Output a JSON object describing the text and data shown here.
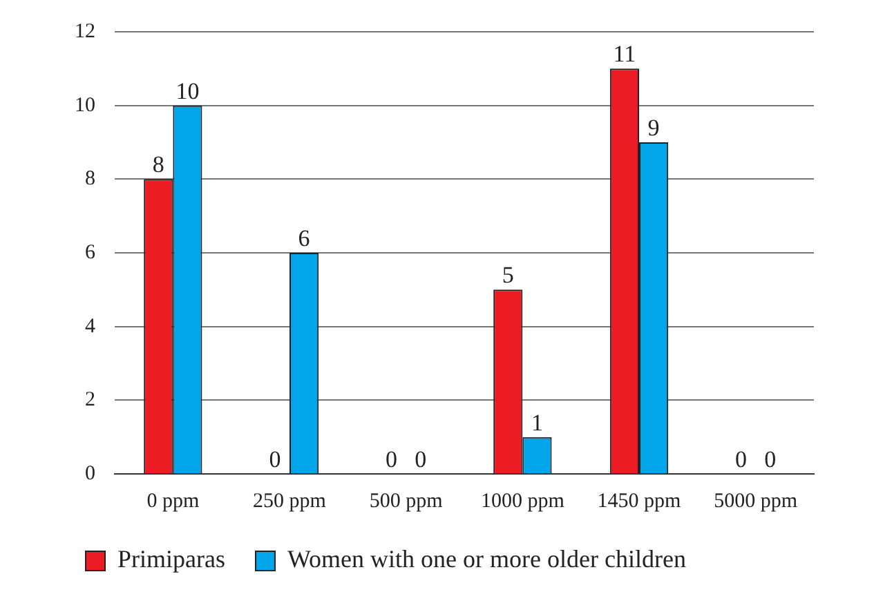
{
  "chart_data": {
    "type": "bar",
    "categories": [
      "0 ppm",
      "250 ppm",
      "500 ppm",
      "1000 ppm",
      "1450 ppm",
      "5000 ppm"
    ],
    "series": [
      {
        "name": "Primiparas",
        "color": "#ed1c24",
        "values": [
          8,
          0,
          0,
          5,
          11,
          0
        ]
      },
      {
        "name": "Women with one or more older children",
        "color": "#00a6e9",
        "values": [
          10,
          6,
          0,
          1,
          9,
          0
        ]
      }
    ],
    "ylim": [
      0,
      12
    ],
    "yticks": [
      0,
      2,
      4,
      6,
      8,
      10,
      12
    ],
    "grid": "y",
    "legend": "bottom",
    "data_labels": true
  }
}
